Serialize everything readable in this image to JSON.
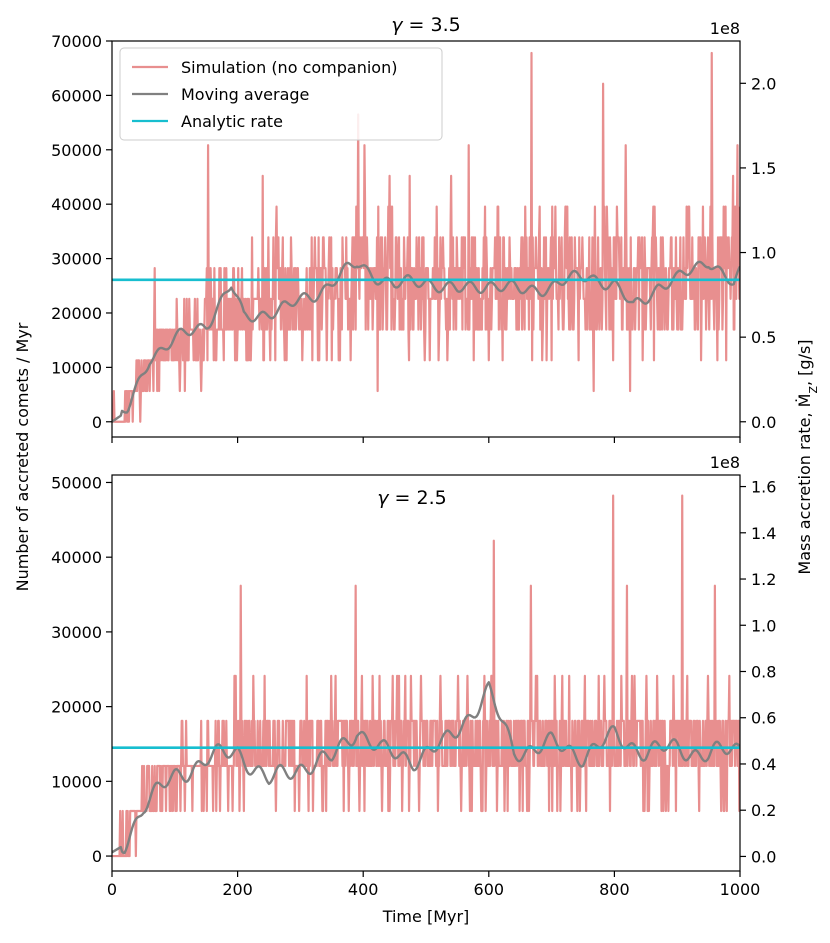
{
  "figure": {
    "xlabel": "Time [Myr]",
    "ylabel_left": "Number of accreted comets / Myr",
    "ylabel_right": "Mass accretion rate, Ṁ",
    "ylabel_right_sub": "Z",
    "ylabel_right_unit": ", [g/s]",
    "colors": {
      "simulation": "#e88f8f",
      "moving_average": "#808080",
      "analytic": "#17becf"
    }
  },
  "legend": {
    "location": "upper-left",
    "entries": [
      {
        "label": "Simulation (no companion)",
        "color": "#e88f8f"
      },
      {
        "label": "Moving average",
        "color": "#808080"
      },
      {
        "label": "Analytic rate",
        "color": "#17becf"
      }
    ]
  },
  "chart_data": [
    {
      "type": "line",
      "title": "γ = 3.5",
      "title_parts": {
        "symbol": "γ",
        "rest": " = 3.5"
      },
      "xlim": [
        0,
        1000
      ],
      "ylim": [
        -2800,
        70000
      ],
      "y2lim": [
        -0.09,
        2.25
      ],
      "y2_offset_label": "1e8",
      "xticks": [
        0,
        200,
        400,
        600,
        800,
        1000
      ],
      "xtick_labels_visible": false,
      "yticks": [
        0,
        10000,
        20000,
        30000,
        40000,
        50000,
        60000,
        70000
      ],
      "ytick_labels": [
        "0",
        "10000",
        "20000",
        "30000",
        "40000",
        "50000",
        "60000",
        "70000"
      ],
      "y2ticks": [
        0.0,
        0.5,
        1.0,
        1.5,
        2.0
      ],
      "y2tick_labels": [
        "0.0",
        "0.5",
        "1.0",
        "1.5",
        "2.0"
      ],
      "simulation": {
        "quantum": 5650,
        "max_level": 12,
        "trend_points": [
          [
            0,
            0
          ],
          [
            20,
            2000
          ],
          [
            50,
            9000
          ],
          [
            100,
            15000
          ],
          [
            150,
            18000
          ],
          [
            200,
            21000
          ],
          [
            260,
            22000
          ],
          [
            330,
            25000
          ],
          [
            400,
            26500
          ],
          [
            500,
            26000
          ],
          [
            600,
            25500
          ],
          [
            700,
            26000
          ],
          [
            800,
            26000
          ],
          [
            900,
            26000
          ],
          [
            1000,
            26000
          ]
        ],
        "spikes": [
          [
            68,
            28250
          ],
          [
            153,
            50850
          ],
          [
            240,
            45200
          ],
          [
            392,
            56500
          ],
          [
            402,
            50850
          ],
          [
            540,
            45200
          ],
          [
            568,
            50850
          ],
          [
            668,
            67800
          ],
          [
            782,
            62150
          ],
          [
            818,
            50850
          ],
          [
            955,
            67800
          ],
          [
            996,
            50850
          ]
        ],
        "seed": 7
      },
      "moving_average": {
        "window": 9,
        "points": [
          [
            0,
            0
          ],
          [
            25,
            2000
          ],
          [
            60,
            12000
          ],
          [
            100,
            15000
          ],
          [
            150,
            18000
          ],
          [
            190,
            25000
          ],
          [
            210,
            19000
          ],
          [
            240,
            20000
          ],
          [
            280,
            21000
          ],
          [
            330,
            24000
          ],
          [
            390,
            29000
          ],
          [
            450,
            25000
          ],
          [
            500,
            26000
          ],
          [
            550,
            24000
          ],
          [
            600,
            25500
          ],
          [
            650,
            24000
          ],
          [
            700,
            25000
          ],
          [
            760,
            27000
          ],
          [
            800,
            25000
          ],
          [
            830,
            21000
          ],
          [
            870,
            25000
          ],
          [
            900,
            26000
          ],
          [
            950,
            30000
          ],
          [
            990,
            25000
          ],
          [
            1000,
            27000
          ]
        ]
      },
      "analytic_rate": 26100
    },
    {
      "type": "line",
      "title": "γ = 2.5",
      "title_parts": {
        "symbol": "γ",
        "rest": " = 2.5"
      },
      "xlim": [
        0,
        1000
      ],
      "ylim": [
        -2000,
        51000
      ],
      "y2lim": [
        -0.063,
        1.65
      ],
      "y2_offset_label": "1e8",
      "xticks": [
        0,
        200,
        400,
        600,
        800,
        1000
      ],
      "xtick_labels": [
        "0",
        "200",
        "400",
        "600",
        "800",
        "1000"
      ],
      "yticks": [
        0,
        10000,
        20000,
        30000,
        40000,
        50000
      ],
      "ytick_labels": [
        "0",
        "10000",
        "20000",
        "30000",
        "40000",
        "50000"
      ],
      "y2ticks": [
        0.0,
        0.2,
        0.4,
        0.6,
        0.8,
        1.0,
        1.2,
        1.4,
        1.6
      ],
      "y2tick_labels": [
        "0.0",
        "0.2",
        "0.4",
        "0.6",
        "0.8",
        "1.0",
        "1.2",
        "1.4",
        "1.6"
      ],
      "simulation": {
        "quantum": 6030,
        "max_level": 8,
        "trend_points": [
          [
            0,
            0
          ],
          [
            20,
            2000
          ],
          [
            50,
            8000
          ],
          [
            100,
            11000
          ],
          [
            200,
            13500
          ],
          [
            300,
            14000
          ],
          [
            400,
            15000
          ],
          [
            500,
            14500
          ],
          [
            600,
            15000
          ],
          [
            700,
            14500
          ],
          [
            800,
            15000
          ],
          [
            900,
            14500
          ],
          [
            1000,
            14500
          ]
        ],
        "spikes": [
          [
            205,
            36180
          ],
          [
            388,
            36180
          ],
          [
            608,
            42210
          ],
          [
            667,
            36180
          ],
          [
            798,
            48240
          ],
          [
            820,
            36180
          ],
          [
            908,
            48240
          ],
          [
            960,
            36180
          ]
        ],
        "seed": 21
      },
      "moving_average": {
        "window": 9,
        "points": [
          [
            0,
            500
          ],
          [
            20,
            1500
          ],
          [
            50,
            7000
          ],
          [
            100,
            10500
          ],
          [
            150,
            13000
          ],
          [
            200,
            14000
          ],
          [
            250,
            10000
          ],
          [
            300,
            12000
          ],
          [
            350,
            13000
          ],
          [
            390,
            17000
          ],
          [
            430,
            14000
          ],
          [
            480,
            13000
          ],
          [
            530,
            15000
          ],
          [
            600,
            22000
          ],
          [
            640,
            14000
          ],
          [
            700,
            15000
          ],
          [
            750,
            13500
          ],
          [
            800,
            16000
          ],
          [
            850,
            14000
          ],
          [
            900,
            14500
          ],
          [
            950,
            13500
          ],
          [
            1000,
            14500
          ]
        ]
      },
      "analytic_rate": 14500
    }
  ]
}
